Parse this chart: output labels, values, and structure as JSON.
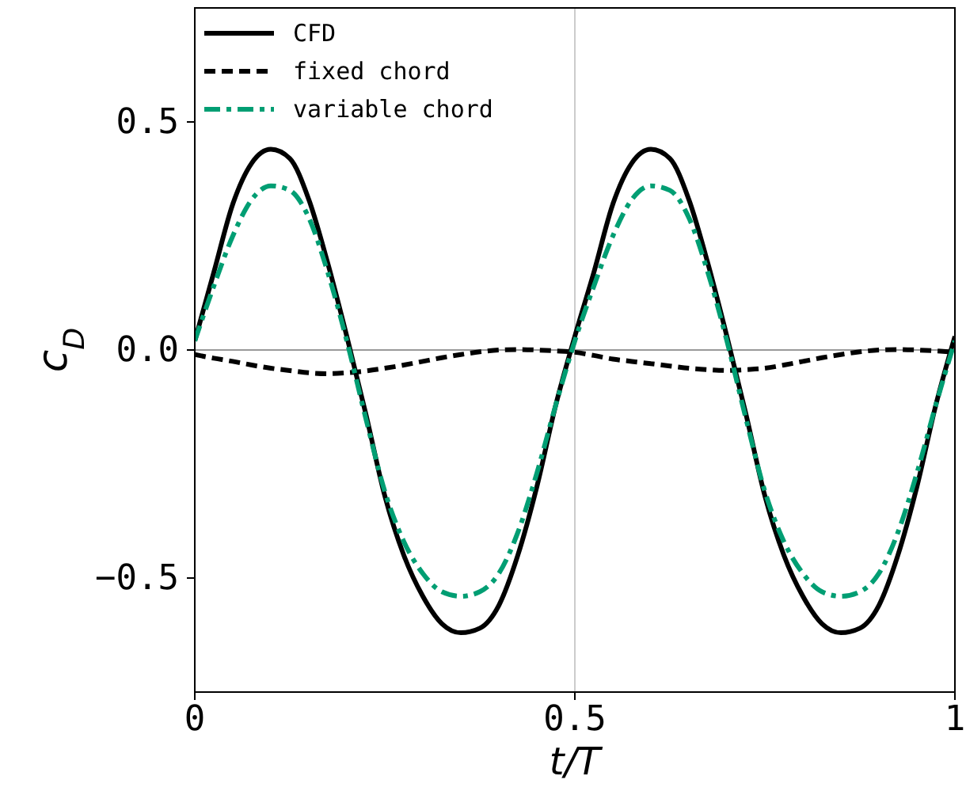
{
  "chart_data": {
    "type": "line",
    "xlabel": "t/T",
    "ylabel": "c$_{D}$",
    "xlim": [
      0,
      1
    ],
    "ylim": [
      -0.75,
      0.75
    ],
    "xticks": [
      0,
      0.5,
      1
    ],
    "yticks": [
      {
        "value": -0.5,
        "label": "−0.5"
      },
      {
        "value": 0,
        "label": "0.0"
      },
      {
        "value": 0.5,
        "label": "0.5"
      }
    ],
    "legend": "top left",
    "grid": false,
    "ref_lines": [
      {
        "axis": "x",
        "value": 0.5,
        "color": "#cccccc"
      },
      {
        "axis": "y",
        "value": 0,
        "color": "#999999"
      }
    ],
    "x": [
      0,
      0.025,
      0.05,
      0.075,
      0.1,
      0.125,
      0.15,
      0.175,
      0.2,
      0.225,
      0.25,
      0.275,
      0.3,
      0.325,
      0.35,
      0.375,
      0.4,
      0.425,
      0.45,
      0.475,
      0.5,
      0.525,
      0.55,
      0.575,
      0.6,
      0.625,
      0.65,
      0.675,
      0.7,
      0.725,
      0.75,
      0.775,
      0.8,
      0.825,
      0.85,
      0.875,
      0.9,
      0.925,
      0.95,
      0.975,
      1
    ],
    "series": [
      {
        "name": "CFD",
        "color": "#000000",
        "line_style": "solid",
        "values": [
          0.02,
          0.17,
          0.32,
          0.41,
          0.44,
          0.42,
          0.33,
          0.19,
          0.03,
          -0.14,
          -0.32,
          -0.45,
          -0.54,
          -0.6,
          -0.62,
          -0.61,
          -0.56,
          -0.45,
          -0.3,
          -0.12,
          0.03,
          0.17,
          0.32,
          0.41,
          0.44,
          0.42,
          0.33,
          0.19,
          0.03,
          -0.14,
          -0.32,
          -0.45,
          -0.54,
          -0.6,
          -0.62,
          -0.61,
          -0.56,
          -0.45,
          -0.3,
          -0.12,
          0.03
        ]
      },
      {
        "name": "fixed chord",
        "color": "#000000",
        "line_style": "dashed",
        "values": [
          -0.01,
          -0.018,
          -0.025,
          -0.033,
          -0.04,
          -0.045,
          -0.05,
          -0.052,
          -0.05,
          -0.046,
          -0.04,
          -0.033,
          -0.025,
          -0.017,
          -0.01,
          -0.004,
          0,
          0.001,
          0,
          -0.002,
          -0.005,
          -0.012,
          -0.02,
          -0.025,
          -0.03,
          -0.035,
          -0.04,
          -0.043,
          -0.045,
          -0.043,
          -0.04,
          -0.033,
          -0.025,
          -0.017,
          -0.01,
          -0.004,
          0,
          0.001,
          0,
          -0.002,
          -0.005
        ]
      },
      {
        "name": "variable chord",
        "color": "#009e73",
        "line_style": "dashdot",
        "values": [
          0.02,
          0.14,
          0.25,
          0.33,
          0.36,
          0.35,
          0.29,
          0.17,
          0.02,
          -0.15,
          -0.31,
          -0.42,
          -0.49,
          -0.53,
          -0.54,
          -0.53,
          -0.49,
          -0.4,
          -0.27,
          -0.12,
          0.02,
          0.14,
          0.25,
          0.33,
          0.36,
          0.35,
          0.29,
          0.17,
          0.02,
          -0.15,
          -0.31,
          -0.42,
          -0.49,
          -0.53,
          -0.54,
          -0.53,
          -0.49,
          -0.4,
          -0.27,
          -0.12,
          0.02
        ]
      }
    ]
  }
}
